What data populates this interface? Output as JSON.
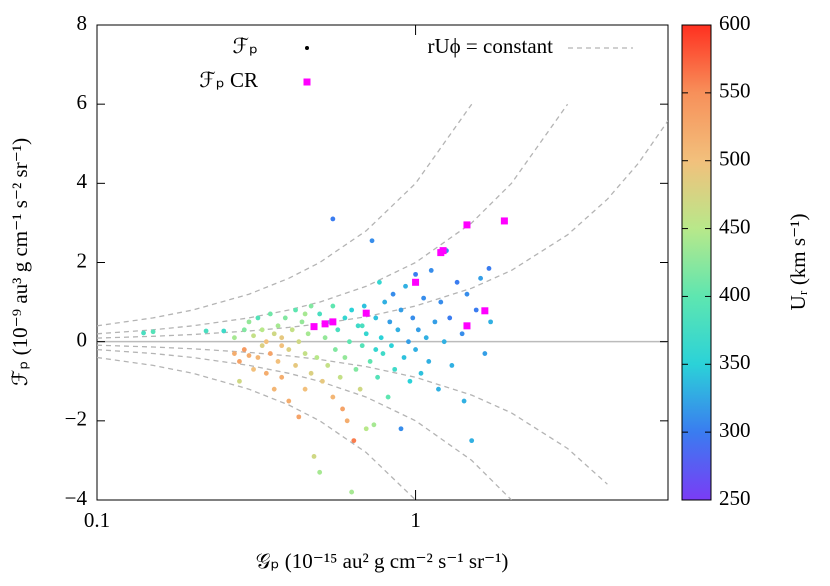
{
  "chart_data": {
    "type": "scatter",
    "x_label": "𝒢ₚ (10⁻¹⁵ au² g cm⁻² s⁻¹ sr⁻¹)",
    "y_label": "ℱₚ (10⁻⁹ au³ g cm⁻¹ s⁻² sr⁻¹)",
    "x_log": true,
    "xlim": [
      0.1,
      6.2
    ],
    "xticks": [
      0.1,
      1
    ],
    "ylim": [
      -4,
      8
    ],
    "yticks": [
      {
        "value": -4,
        "label": "−4"
      },
      {
        "value": -2,
        "label": "−2"
      },
      0,
      2,
      4,
      6,
      8
    ],
    "zero_line": true,
    "legend": "top",
    "colorbar": {
      "label": "Uᵣ (km s⁻¹)",
      "lim": [
        250,
        600
      ],
      "ticks": [
        250,
        300,
        350,
        400,
        450,
        500,
        550,
        600
      ],
      "colormap": [
        "#7a3cf5",
        "#3a7cf0",
        "#2bd2d8",
        "#5ee6b0",
        "#b8e88a",
        "#f2c07c",
        "#f7905a",
        "#ff3020"
      ]
    },
    "series": [
      {
        "name": "ℱₚ",
        "color": "#000000",
        "marker": "circle",
        "x": [
          0.15,
          0.14,
          0.22,
          0.25,
          0.27,
          0.27,
          0.28,
          0.28,
          0.29,
          0.29,
          0.3,
          0.3,
          0.31,
          0.31,
          0.32,
          0.32,
          0.33,
          0.33,
          0.34,
          0.34,
          0.35,
          0.35,
          0.36,
          0.36,
          0.37,
          0.37,
          0.38,
          0.38,
          0.39,
          0.4,
          0.4,
          0.41,
          0.42,
          0.42,
          0.43,
          0.43,
          0.44,
          0.45,
          0.45,
          0.46,
          0.47,
          0.47,
          0.48,
          0.48,
          0.49,
          0.5,
          0.5,
          0.51,
          0.52,
          0.53,
          0.54,
          0.55,
          0.55,
          0.56,
          0.57,
          0.58,
          0.59,
          0.6,
          0.6,
          0.61,
          0.62,
          0.63,
          0.63,
          0.64,
          0.65,
          0.66,
          0.67,
          0.68,
          0.69,
          0.7,
          0.7,
          0.72,
          0.73,
          0.74,
          0.75,
          0.76,
          0.77,
          0.78,
          0.79,
          0.8,
          0.82,
          0.83,
          0.84,
          0.85,
          0.86,
          0.88,
          0.9,
          0.9,
          0.92,
          0.93,
          0.95,
          0.96,
          0.98,
          1.0,
          1.0,
          1.02,
          1.04,
          1.06,
          1.08,
          1.1,
          1.12,
          1.15,
          1.18,
          1.2,
          1.23,
          1.25,
          1.28,
          1.3,
          1.35,
          1.4,
          1.42,
          1.45,
          1.5,
          1.55,
          1.6,
          1.65,
          1.7,
          1.72,
          0.75,
          0.68,
          0.55,
          0.45,
          0.38
        ],
        "values": [
          0.25,
          0.22,
          0.27,
          0.27,
          0.1,
          -0.3,
          -0.5,
          -1.0,
          -0.2,
          0.3,
          -0.35,
          0.5,
          -0.7,
          0.15,
          -0.4,
          0.6,
          -0.1,
          0.3,
          -0.8,
          0.0,
          0.7,
          -0.3,
          0.2,
          -1.2,
          -0.5,
          0.4,
          0.1,
          -0.9,
          0.6,
          -0.2,
          -1.5,
          0.3,
          0.8,
          -0.6,
          0.0,
          -1.9,
          0.5,
          -0.3,
          -1.2,
          0.2,
          0.9,
          -0.8,
          -2.9,
          0.4,
          -0.4,
          0.7,
          -3.3,
          -1.0,
          0.1,
          -0.6,
          0.5,
          -1.4,
          3.1,
          -0.2,
          0.3,
          -0.9,
          -1.7,
          0.6,
          -0.4,
          -2.0,
          0.0,
          -3.8,
          0.8,
          -2.5,
          -0.7,
          0.4,
          -1.2,
          -0.1,
          0.9,
          -2.2,
          0.2,
          -0.5,
          2.55,
          -2.1,
          0.6,
          -0.9,
          1.5,
          0.1,
          -0.3,
          1.0,
          -1.4,
          0.5,
          -0.1,
          1.2,
          -0.7,
          0.3,
          -2.2,
          0.8,
          -0.4,
          1.4,
          0.0,
          -1.0,
          0.6,
          -0.2,
          1.7,
          0.3,
          -0.8,
          1.1,
          0.1,
          -0.5,
          1.8,
          0.5,
          -1.2,
          1.0,
          0.0,
          2.3,
          0.6,
          -0.6,
          1.5,
          0.2,
          -1.5,
          1.2,
          -2.5,
          0.8,
          1.6,
          -0.3,
          1.85,
          0.5,
          -0.2,
          0.4,
          0.9,
          0.7,
          -0.1
        ],
        "color_values": [
          390,
          380,
          380,
          370,
          440,
          520,
          530,
          470,
          540,
          420,
          520,
          430,
          500,
          460,
          510,
          390,
          480,
          450,
          520,
          500,
          410,
          530,
          470,
          510,
          500,
          440,
          490,
          520,
          420,
          480,
          520,
          460,
          400,
          490,
          470,
          530,
          430,
          460,
          500,
          440,
          420,
          480,
          470,
          400,
          450,
          380,
          440,
          490,
          430,
          460,
          390,
          510,
          300,
          420,
          380,
          460,
          530,
          360,
          430,
          520,
          400,
          440,
          350,
          560,
          420,
          370,
          470,
          390,
          340,
          450,
          360,
          400,
          310,
          440,
          340,
          390,
          360,
          350,
          370,
          330,
          400,
          320,
          350,
          310,
          370,
          330,
          310,
          320,
          340,
          330,
          320,
          350,
          310,
          330,
          300,
          320,
          340,
          310,
          330,
          330,
          310,
          320,
          330,
          310,
          330,
          310,
          300,
          330,
          300,
          310,
          330,
          310,
          330,
          300,
          320,
          320,
          300,
          330,
          360,
          380,
          400,
          440,
          500
        ]
      },
      {
        "name": "ℱₚ CR",
        "color": "#ff00ff",
        "marker": "square",
        "x": [
          0.48,
          0.52,
          0.55,
          0.7,
          1.0,
          1.2,
          1.22,
          1.45,
          1.9,
          1.65,
          1.45
        ],
        "values": [
          0.38,
          0.45,
          0.5,
          0.72,
          1.5,
          2.25,
          2.3,
          2.95,
          3.05,
          0.78,
          0.4
        ]
      }
    ],
    "reference": {
      "name": "rUϕ = constant",
      "color": "#b4b4b4",
      "x": [
        0.1,
        0.15,
        0.2,
        0.3,
        0.4,
        0.5,
        0.7,
        1,
        1.5,
        2,
        3,
        4,
        5,
        6.2
      ],
      "lines": [
        [
          0.4,
          0.6,
          0.8,
          1.2,
          1.6,
          2,
          2.8,
          4,
          6,
          null,
          null,
          null,
          null,
          null
        ],
        [
          0.2,
          0.3,
          0.4,
          0.6,
          0.8,
          1,
          1.4,
          2,
          3,
          4,
          6,
          null,
          null,
          null
        ],
        [
          0.09,
          0.135,
          0.18,
          0.27,
          0.36,
          0.45,
          0.63,
          0.9,
          1.35,
          1.8,
          2.7,
          3.6,
          4.5,
          5.58
        ],
        [
          -0.09,
          -0.135,
          -0.18,
          -0.27,
          -0.36,
          -0.45,
          -0.63,
          -0.9,
          -1.35,
          -1.8,
          -2.7,
          -3.6,
          null,
          null
        ],
        [
          -0.2,
          -0.3,
          -0.4,
          -0.6,
          -0.8,
          -1,
          -1.4,
          -2,
          -3,
          -4,
          null,
          null,
          null,
          null
        ],
        [
          -0.4,
          -0.6,
          -0.8,
          -1.2,
          -1.6,
          -2,
          -2.8,
          -4,
          null,
          null,
          null,
          null,
          null,
          null
        ]
      ]
    }
  }
}
